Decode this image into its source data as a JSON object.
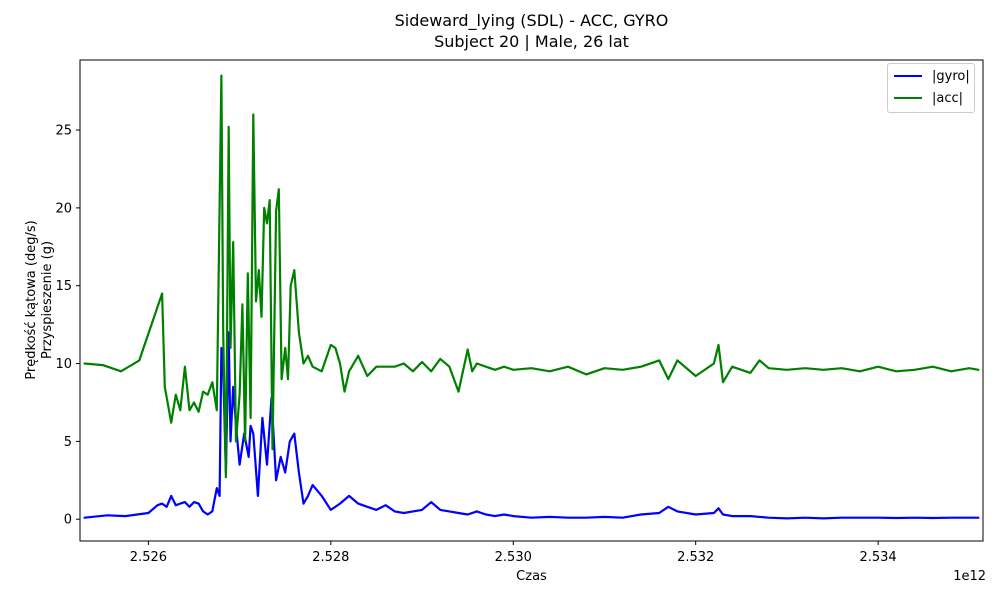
{
  "chart_data": {
    "type": "line",
    "title": "Sideward_lying (SDL) - ACC, GYRO",
    "subtitle": "Subject 20 | Male, 26 lat",
    "xlabel": "Czas",
    "x_offset_label": "1e12",
    "ylabel_lines": [
      "Prędkość kątowa (deg/s)",
      "Przyspieszenie (g)"
    ],
    "xlim": [
      2525.25,
      2535.15
    ],
    "ylim": [
      -1.4,
      29.5
    ],
    "x_ticks": [
      2526,
      2528,
      2530,
      2532,
      2534
    ],
    "x_tick_labels": [
      "2.526",
      "2.528",
      "2.530",
      "2.532",
      "2.534"
    ],
    "y_ticks": [
      0,
      5,
      10,
      15,
      20,
      25
    ],
    "y_tick_labels": [
      "0",
      "5",
      "10",
      "15",
      "20",
      "25"
    ],
    "legend_position": "top-right",
    "grid": false,
    "series": [
      {
        "name": "|gyro|",
        "color": "#0000ff",
        "x": [
          2525.3,
          2525.55,
          2525.75,
          2526.0,
          2526.1,
          2526.15,
          2526.2,
          2526.25,
          2526.3,
          2526.35,
          2526.4,
          2526.45,
          2526.5,
          2526.55,
          2526.6,
          2526.65,
          2526.7,
          2526.75,
          2526.78,
          2526.8,
          2526.82,
          2526.85,
          2526.88,
          2526.9,
          2526.93,
          2526.96,
          2527.0,
          2527.05,
          2527.1,
          2527.12,
          2527.15,
          2527.2,
          2527.25,
          2527.3,
          2527.35,
          2527.4,
          2527.45,
          2527.5,
          2527.55,
          2527.6,
          2527.65,
          2527.7,
          2527.75,
          2527.8,
          2527.9,
          2528.0,
          2528.1,
          2528.2,
          2528.3,
          2528.4,
          2528.5,
          2528.6,
          2528.7,
          2528.8,
          2528.9,
          2529.0,
          2529.1,
          2529.2,
          2529.3,
          2529.4,
          2529.5,
          2529.6,
          2529.7,
          2529.8,
          2529.9,
          2530.0,
          2530.2,
          2530.4,
          2530.6,
          2530.8,
          2531.0,
          2531.2,
          2531.4,
          2531.6,
          2531.7,
          2531.8,
          2532.0,
          2532.2,
          2532.25,
          2532.3,
          2532.4,
          2532.6,
          2532.8,
          2533.0,
          2533.2,
          2533.4,
          2533.6,
          2533.8,
          2534.0,
          2534.2,
          2534.4,
          2534.6,
          2534.8,
          2535.0,
          2535.1
        ],
        "y": [
          0.1,
          0.25,
          0.2,
          0.4,
          0.9,
          1.0,
          0.8,
          1.5,
          0.9,
          1.0,
          1.1,
          0.8,
          1.1,
          1.0,
          0.5,
          0.3,
          0.5,
          2.0,
          1.5,
          11.0,
          9.5,
          3.0,
          12.0,
          5.0,
          8.5,
          6.0,
          3.5,
          5.5,
          4.0,
          6.0,
          5.5,
          1.5,
          6.5,
          3.5,
          7.8,
          2.5,
          4.0,
          3.0,
          5.0,
          5.5,
          3.0,
          1.0,
          1.5,
          2.2,
          1.5,
          0.6,
          1.0,
          1.5,
          1.0,
          0.8,
          0.6,
          0.9,
          0.5,
          0.4,
          0.5,
          0.6,
          1.1,
          0.6,
          0.5,
          0.4,
          0.3,
          0.5,
          0.3,
          0.2,
          0.3,
          0.2,
          0.1,
          0.15,
          0.1,
          0.1,
          0.15,
          0.1,
          0.3,
          0.4,
          0.8,
          0.5,
          0.3,
          0.4,
          0.7,
          0.3,
          0.2,
          0.2,
          0.1,
          0.05,
          0.1,
          0.05,
          0.1,
          0.1,
          0.1,
          0.08,
          0.1,
          0.08,
          0.1,
          0.1,
          0.1
        ]
      },
      {
        "name": "|acc|",
        "color": "#008000",
        "x": [
          2525.3,
          2525.5,
          2525.7,
          2525.9,
          2526.15,
          2526.18,
          2526.25,
          2526.3,
          2526.35,
          2526.4,
          2526.45,
          2526.5,
          2526.55,
          2526.6,
          2526.65,
          2526.7,
          2526.75,
          2526.8,
          2526.82,
          2526.85,
          2526.88,
          2526.9,
          2526.93,
          2526.96,
          2527.0,
          2527.03,
          2527.06,
          2527.09,
          2527.12,
          2527.15,
          2527.18,
          2527.21,
          2527.24,
          2527.27,
          2527.3,
          2527.33,
          2527.36,
          2527.4,
          2527.43,
          2527.46,
          2527.5,
          2527.53,
          2527.56,
          2527.6,
          2527.65,
          2527.7,
          2527.75,
          2527.8,
          2527.9,
          2528.0,
          2528.05,
          2528.1,
          2528.15,
          2528.2,
          2528.3,
          2528.4,
          2528.5,
          2528.6,
          2528.7,
          2528.8,
          2528.9,
          2529.0,
          2529.1,
          2529.2,
          2529.3,
          2529.4,
          2529.5,
          2529.55,
          2529.6,
          2529.7,
          2529.8,
          2529.9,
          2530.0,
          2530.2,
          2530.4,
          2530.6,
          2530.8,
          2531.0,
          2531.2,
          2531.4,
          2531.6,
          2531.7,
          2531.8,
          2532.0,
          2532.2,
          2532.25,
          2532.3,
          2532.4,
          2532.6,
          2532.7,
          2532.8,
          2533.0,
          2533.2,
          2533.4,
          2533.6,
          2533.8,
          2534.0,
          2534.2,
          2534.4,
          2534.6,
          2534.8,
          2535.0,
          2535.1
        ],
        "y": [
          10.0,
          9.9,
          9.5,
          10.2,
          14.5,
          8.5,
          6.2,
          8.0,
          7.0,
          9.8,
          7.0,
          7.5,
          6.9,
          8.2,
          8.0,
          8.8,
          7.0,
          28.5,
          12.0,
          2.7,
          25.2,
          11.0,
          17.8,
          5.0,
          8.0,
          13.8,
          5.0,
          15.8,
          6.5,
          26.0,
          14.0,
          16.0,
          13.0,
          20.0,
          19.0,
          20.5,
          4.5,
          19.8,
          21.2,
          9.0,
          11.0,
          9.0,
          15.0,
          16.0,
          12.0,
          10.0,
          10.5,
          9.8,
          9.5,
          11.2,
          11.0,
          10.0,
          8.2,
          9.5,
          10.5,
          9.2,
          9.8,
          9.8,
          9.8,
          10.0,
          9.5,
          10.1,
          9.5,
          10.3,
          9.8,
          8.2,
          10.9,
          9.5,
          10.0,
          9.8,
          9.6,
          9.8,
          9.6,
          9.7,
          9.5,
          9.8,
          9.3,
          9.7,
          9.6,
          9.8,
          10.2,
          9.0,
          10.2,
          9.2,
          10.0,
          11.2,
          8.8,
          9.8,
          9.4,
          10.2,
          9.7,
          9.6,
          9.7,
          9.6,
          9.7,
          9.5,
          9.8,
          9.5,
          9.6,
          9.8,
          9.5,
          9.7,
          9.6
        ]
      }
    ]
  }
}
